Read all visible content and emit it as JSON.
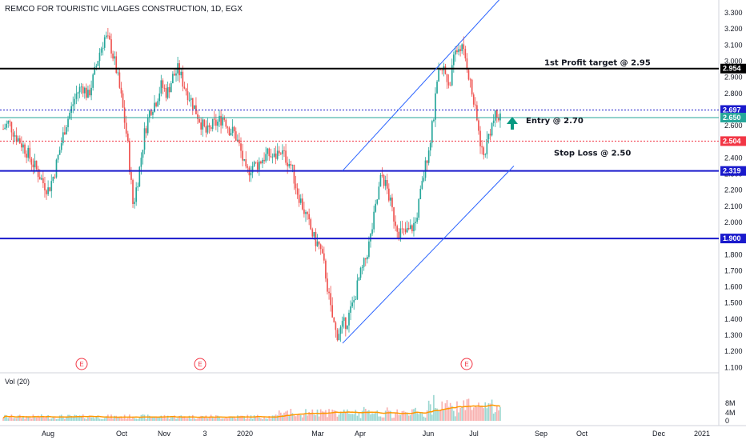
{
  "chart_data": {
    "type": "candlestick",
    "title": "REMCO FOR TOURISTIC VILLAGES CONSTRUCTION, 1D, EGX",
    "y_ticks": [
      "3.300",
      "3.200",
      "3.100",
      "3.000",
      "2.900",
      "2.800",
      "2.700",
      "2.600",
      "2.500",
      "2.400",
      "2.300",
      "2.200",
      "2.100",
      "2.000",
      "1.900",
      "1.800",
      "1.700",
      "1.600",
      "1.500",
      "1.400",
      "1.300",
      "1.200",
      "1.100"
    ],
    "x_ticks": [
      "Aug",
      "Oct",
      "Nov",
      "3",
      "2020",
      "Mar",
      "Apr",
      "Jun",
      "Jul",
      "Sep",
      "Oct",
      "Dec",
      "2021"
    ],
    "ylim": [
      1.07,
      3.35
    ],
    "levels": [
      {
        "value": 2.954,
        "label": "2.954",
        "color": "#000000",
        "style": "solid"
      },
      {
        "value": 2.697,
        "label": "2.697",
        "color": "#1a1acc",
        "style": "dotted"
      },
      {
        "value": 2.65,
        "label": "2.650",
        "color": "#26a69a",
        "style": "solid"
      },
      {
        "value": 2.504,
        "label": "2.504",
        "color": "#f23645",
        "style": "dotted"
      },
      {
        "value": 2.319,
        "label": "2.319",
        "color": "#1a1acc",
        "style": "solid"
      },
      {
        "value": 1.9,
        "label": "1.900",
        "color": "#1a1acc",
        "style": "solid"
      }
    ],
    "annotations": [
      {
        "text": "1st Profit target @ 2.95",
        "y": 2.99
      },
      {
        "text": "Entry @ 2.70",
        "y": 2.63
      },
      {
        "text": "Stop Loss @ 2.50",
        "y": 2.43
      }
    ],
    "earnings_markers": [
      "E",
      "E",
      "E"
    ],
    "channel": {
      "lower": [
        [
          1.25,
          "Mar"
        ],
        [
          2.35,
          "Jul"
        ]
      ],
      "upper": [
        [
          2.32,
          "Mar"
        ],
        [
          3.48,
          "Jul"
        ]
      ]
    },
    "price_path": [
      2.58,
      2.62,
      2.55,
      2.5,
      2.45,
      2.38,
      2.32,
      2.25,
      2.2,
      2.3,
      2.45,
      2.6,
      2.7,
      2.8,
      2.85,
      2.78,
      2.9,
      3.05,
      3.15,
      3.1,
      2.95,
      2.75,
      2.5,
      2.1,
      2.3,
      2.55,
      2.7,
      2.75,
      2.85,
      2.8,
      2.9,
      2.95,
      2.85,
      2.78,
      2.7,
      2.62,
      2.55,
      2.6,
      2.62,
      2.66,
      2.58,
      2.55,
      2.45,
      2.3,
      2.35,
      2.36,
      2.4,
      2.42,
      2.4,
      2.45,
      2.4,
      2.35,
      2.2,
      2.1,
      2.0,
      1.9,
      1.85,
      1.7,
      1.45,
      1.3,
      1.35,
      1.4,
      1.5,
      1.65,
      1.75,
      1.9,
      2.1,
      2.3,
      2.2,
      2.05,
      1.95,
      1.93,
      1.95,
      2.0,
      2.2,
      2.4,
      2.6,
      2.9,
      2.95,
      2.85,
      3.05,
      3.1,
      3.0,
      2.8,
      2.6,
      2.4,
      2.55,
      2.65,
      2.65
    ],
    "volume": {
      "label": "Vol (20)",
      "ticks": [
        "8M",
        "4M",
        "0"
      ]
    }
  }
}
